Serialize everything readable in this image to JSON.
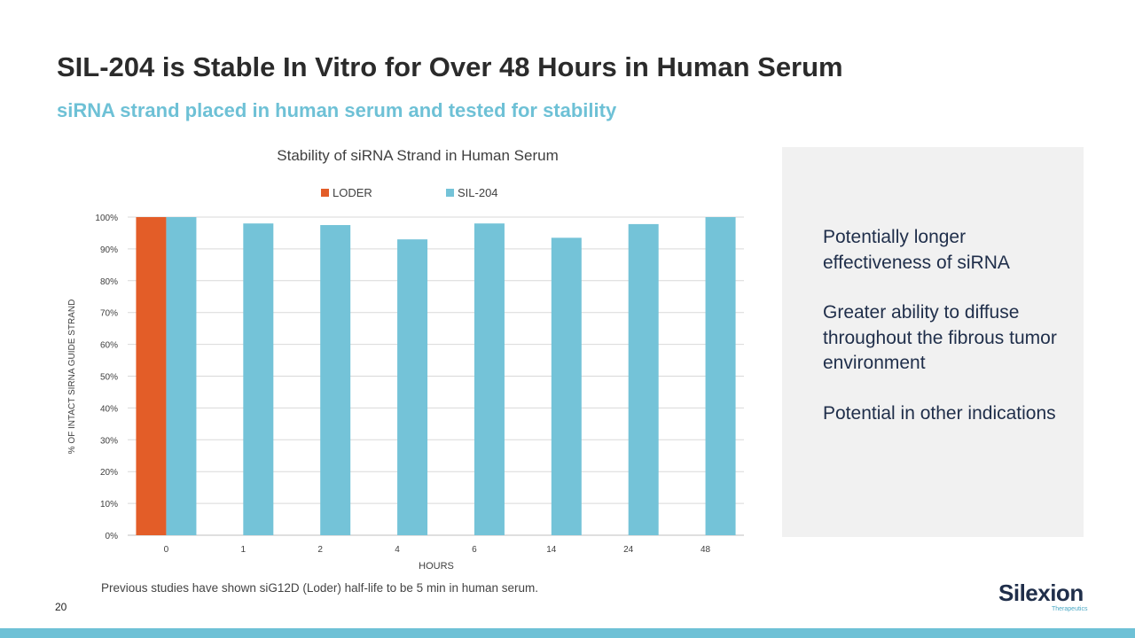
{
  "slide": {
    "title": "SIL-204 is Stable In Vitro for Over 48 Hours in Human Serum",
    "subtitle": "siRNA strand placed in human serum and tested for stability",
    "footnote": "Previous studies have shown siG12D (Loder) half-life to be 5 min in human serum.",
    "page_number": "20"
  },
  "side_panel": {
    "points": [
      "Potentially longer effectiveness of siRNA",
      "Greater ability to diffuse throughout the fibrous tumor environment",
      "Potential in other indications"
    ]
  },
  "logo": {
    "wordmark": "Silexion",
    "tagline": "Therapeutics"
  },
  "colors": {
    "loder": "#e35d28",
    "sil204": "#74c3d8",
    "title": "#2b2b2b",
    "subtitle": "#6ec1d6",
    "band": "#6ec1d6",
    "panel": "#f1f1f1",
    "navy": "#1f2e4a"
  },
  "chart_data": {
    "type": "bar",
    "title": "Stability of siRNA Strand in Human Serum",
    "xlabel": "HOURS",
    "ylabel": "% OF INTACT SIRNA GUIDE STRAND",
    "categories": [
      "0",
      "1",
      "2",
      "4",
      "6",
      "14",
      "24",
      "48"
    ],
    "series": [
      {
        "name": "LODER",
        "values": [
          100,
          null,
          null,
          null,
          null,
          null,
          null,
          null
        ]
      },
      {
        "name": "SIL-204",
        "values": [
          100,
          98,
          97.5,
          93,
          98,
          93.5,
          97.8,
          100
        ]
      }
    ],
    "ylim": [
      0,
      100
    ],
    "yticks": [
      "0%",
      "10%",
      "20%",
      "30%",
      "40%",
      "50%",
      "60%",
      "70%",
      "80%",
      "90%",
      "100%"
    ],
    "legend": "top",
    "grid": true
  }
}
